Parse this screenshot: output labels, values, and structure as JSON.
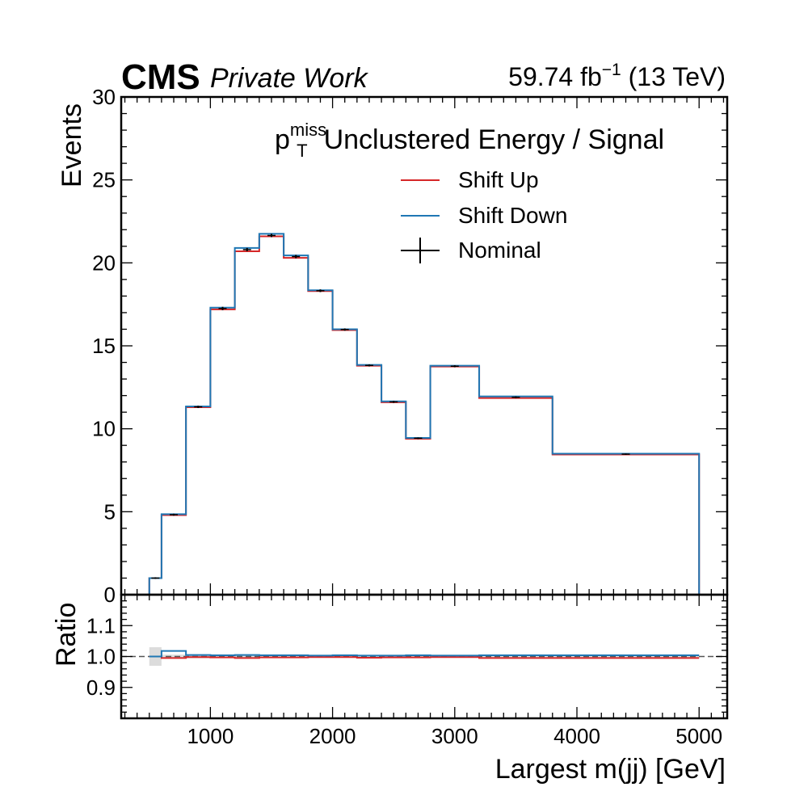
{
  "header": {
    "experiment": "CMS",
    "status": "Private Work",
    "lumi_value": "59.74 fb",
    "lumi_exp": "−1",
    "lumi_energy": "(13 TeV)"
  },
  "legend": {
    "title_p": "p",
    "title_sup": "miss",
    "title_sub": "T",
    "title_rest": "Unclustered Energy / Signal",
    "items": [
      "Shift Up",
      "Shift Down",
      "Nominal"
    ]
  },
  "colors": {
    "up": "#d62728",
    "down": "#1f77b4",
    "nominal": "#000000",
    "band": "#dcdcdc"
  },
  "chart_data": [
    {
      "type": "histogram",
      "ylabel": "Events",
      "ylim": [
        0,
        30
      ],
      "yticks": [
        "0",
        "5",
        "10",
        "15",
        "20",
        "25",
        "30"
      ],
      "bin_edges": [
        500,
        600,
        800,
        1000,
        1200,
        1400,
        1600,
        1800,
        2000,
        2200,
        2400,
        2600,
        2800,
        3200,
        3800,
        5000
      ],
      "series": [
        {
          "name": "Shift Up",
          "values": [
            1.0,
            4.8,
            11.3,
            17.2,
            20.7,
            21.6,
            20.3,
            18.3,
            15.95,
            13.8,
            11.6,
            9.4,
            13.75,
            11.85,
            8.45
          ]
        },
        {
          "name": "Shift Down",
          "values": [
            1.0,
            4.85,
            11.35,
            17.3,
            20.9,
            21.75,
            20.45,
            18.35,
            16.0,
            13.85,
            11.65,
            9.45,
            13.8,
            11.95,
            8.5
          ]
        },
        {
          "name": "Nominal",
          "values": [
            1.0,
            4.82,
            11.32,
            17.25,
            20.8,
            21.65,
            20.38,
            18.32,
            15.98,
            13.82,
            11.62,
            9.43,
            13.77,
            11.9,
            8.47
          ],
          "errors": [
            0.05,
            0.06,
            0.07,
            0.1,
            0.1,
            0.1,
            0.1,
            0.08,
            0.07,
            0.06,
            0.06,
            0.05,
            0.06,
            0.05,
            0.04
          ]
        }
      ]
    },
    {
      "type": "ratio",
      "ylabel": "Ratio",
      "ylim": [
        0.8,
        1.2
      ],
      "yticks": [
        "0.9",
        "1.0",
        "1.1"
      ],
      "xlabel": "Largest m(jj) [GeV]",
      "xlim": [
        270,
        5230
      ],
      "xticks": [
        "1000",
        "2000",
        "3000",
        "4000",
        "5000"
      ],
      "reference": 1.0,
      "series": [
        {
          "name": "Shift Up",
          "values": [
            1.0,
            0.995,
            0.998,
            0.997,
            0.995,
            0.997,
            0.997,
            0.998,
            0.998,
            0.996,
            0.997,
            0.997,
            0.998,
            0.995,
            0.995
          ]
        },
        {
          "name": "Shift Down",
          "values": [
            1.0,
            1.018,
            1.005,
            1.004,
            1.005,
            1.004,
            1.004,
            1.003,
            1.004,
            1.003,
            1.003,
            1.004,
            1.003,
            1.004,
            1.004
          ]
        },
        {
          "name": "Nominal uncertainty",
          "values": [
            0.03,
            0.006,
            0.006,
            0.005,
            0.005,
            0.004,
            0.004,
            0.004,
            0.004,
            0.004,
            0.005,
            0.005,
            0.004,
            0.004,
            0.005
          ]
        }
      ]
    }
  ]
}
